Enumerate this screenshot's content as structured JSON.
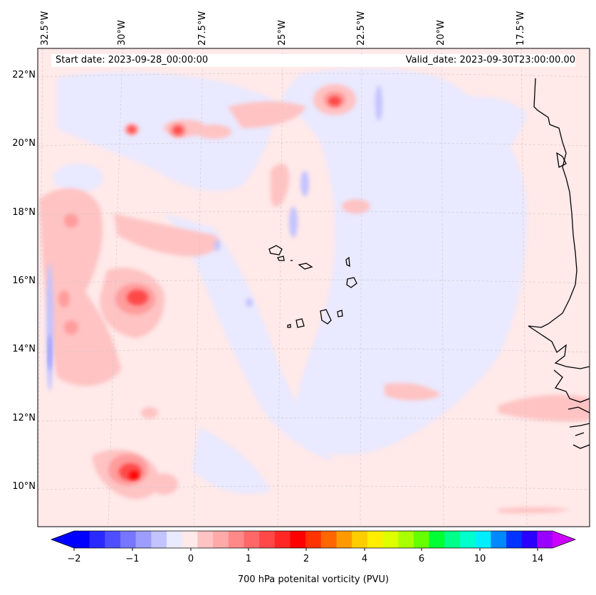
{
  "map": {
    "title_left": "Start date: 2023-09-28_00:00:00",
    "title_right": "Valid_date: 2023-09-30T23:00:00.00",
    "longitude_labels": [
      "32.5°W",
      "30°W",
      "27.5°W",
      "25°W",
      "22.5°W",
      "20°W",
      "17.5°W"
    ],
    "latitude_labels": [
      "22°N",
      "20°N",
      "18°N",
      "16°N",
      "14°N",
      "12°N",
      "10°N"
    ],
    "coastline_color": "#000000",
    "gridline_color": "#c8c8c8"
  },
  "colorbar": {
    "label": "700 hPa potenital vorticity (PVU)",
    "ticks": [
      "−2",
      "−1",
      "0",
      "1",
      "2",
      "4",
      "6",
      "10",
      "14"
    ],
    "colors": [
      "#0000ff",
      "#2a2aff",
      "#4f4fff",
      "#7676ff",
      "#9d9dff",
      "#c3c3ff",
      "#e9e9ff",
      "#ffe9e9",
      "#ffc3c3",
      "#ffa9a9",
      "#ff8888",
      "#ff6868",
      "#ff4848",
      "#ff2626",
      "#ff0000",
      "#ff3300",
      "#ff6600",
      "#ff9900",
      "#ffcc00",
      "#ffee00",
      "#ddff00",
      "#aaff00",
      "#66ff00",
      "#00ff33",
      "#00ff88",
      "#00ffcc",
      "#00eeff",
      "#0088ff",
      "#0033ff",
      "#2a00ff",
      "#9900ff"
    ],
    "extend_min_color": "#0000ff",
    "extend_max_color": "#cc00ff"
  }
}
